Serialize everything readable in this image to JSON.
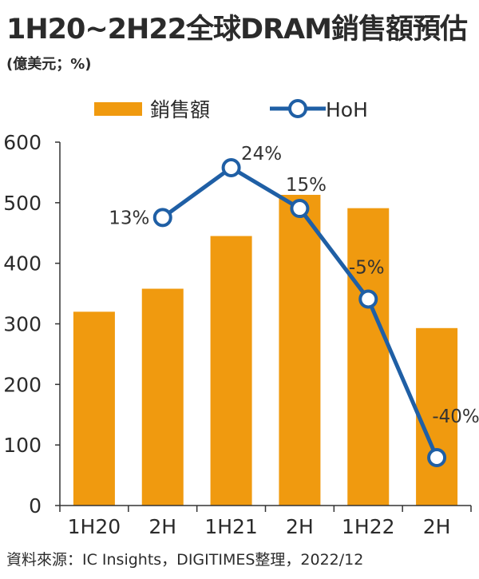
{
  "title": "1H20~2H22全球DRAM銷售額預估",
  "unit": "(億美元；%)",
  "source": "資料來源：IC Insights，DIGITIMES整理，2022/12",
  "colors": {
    "bar": "#F09A0F",
    "line": "#1F5FA5",
    "text": "#2b2b2b",
    "axis": "#333333"
  },
  "legend": {
    "bar_label": "銷售額",
    "bar_icon": "orange-bar-swatch",
    "line_label": "HoH",
    "line_icon": "blue-line-circle-marker"
  },
  "chart_data": {
    "type": "bar",
    "categories": [
      "1H20",
      "2H",
      "1H21",
      "2H",
      "1H22",
      "2H"
    ],
    "series": [
      {
        "name": "銷售額",
        "type": "bar",
        "values": [
          320,
          358,
          445,
          513,
          491,
          293
        ]
      },
      {
        "name": "HoH",
        "type": "line",
        "values": [
          null,
          13,
          24,
          15,
          -5,
          -40
        ],
        "labels": [
          null,
          "13%",
          "24%",
          "15%",
          "-5%",
          "-40%"
        ]
      }
    ],
    "ylim": [
      0,
      600
    ],
    "yticks": [
      0,
      100,
      200,
      300,
      400,
      500,
      600
    ],
    "line_scale_note": "HoH line plotted on unlabeled secondary scale",
    "grid": false,
    "legend_position": "top"
  }
}
